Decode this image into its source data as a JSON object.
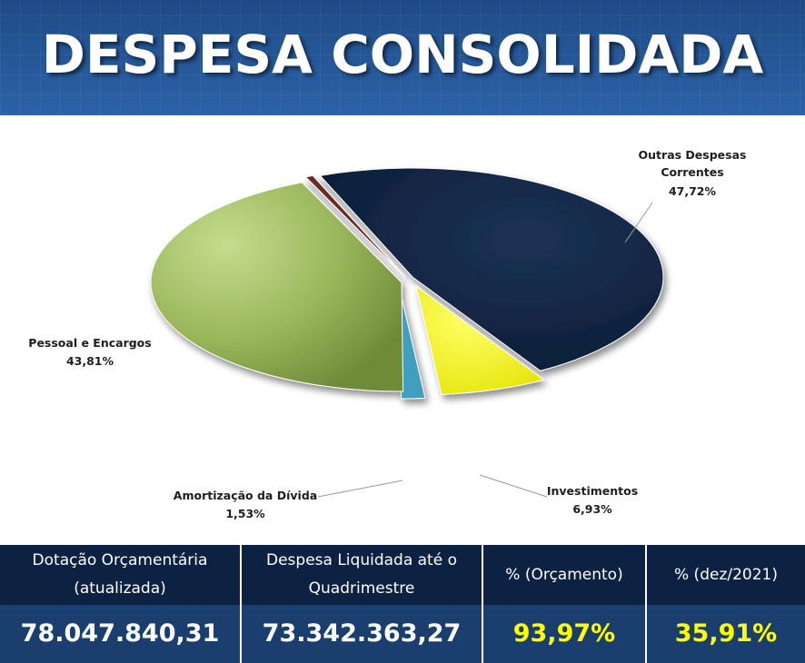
{
  "title": "DESPESA CONSOLIDADA",
  "chart_data": {
    "type": "pie",
    "title": "",
    "slices": [
      {
        "label": "Outras Despesas Correntes",
        "label_lines": [
          "Outras Despesas",
          "Correntes"
        ],
        "value_text": "47,72%",
        "value": 47.72,
        "color": "#0e2240"
      },
      {
        "label": "Investimentos",
        "label_lines": [
          "Investimentos"
        ],
        "value_text": "6,93%",
        "value": 6.93,
        "color": "#f4f400"
      },
      {
        "label": "Amortização da Dívida",
        "label_lines": [
          "Amortização da Dívida"
        ],
        "value_text": "1,53%",
        "value": 1.53,
        "color": "#3f9fbe"
      },
      {
        "label": "Pessoal e Encargos",
        "label_lines": [
          "Pessoal e Encargos"
        ],
        "value_text": "43,81%",
        "value": 43.81,
        "color": "#9ab75a"
      },
      {
        "label": "",
        "label_lines": [],
        "value_text": "",
        "value": 0.5,
        "color": "#6a2a26"
      }
    ]
  },
  "table": {
    "headers": [
      [
        "Dotação Orçamentária",
        "(atualizada)"
      ],
      [
        "Despesa Liquidada até o",
        "Quadrimestre"
      ],
      [
        "%  (Orçamento)"
      ],
      [
        "%  (dez/2021)"
      ]
    ],
    "values": [
      "78.047.840,31",
      "73.342.363,27",
      "93,97%",
      "35,91%"
    ]
  }
}
